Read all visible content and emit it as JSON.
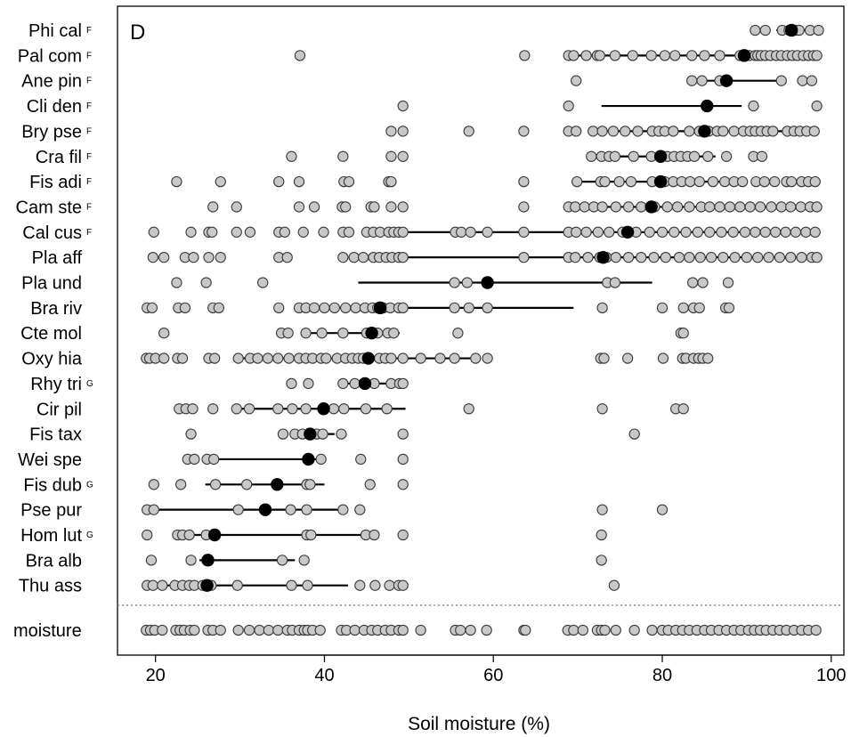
{
  "chart_data": {
    "type": "scatter",
    "panel_label": "D",
    "xlabel": "Soil moisture (%)",
    "xlim": [
      15.5,
      101.5
    ],
    "xticks": [
      20,
      40,
      60,
      80,
      100
    ],
    "series": [
      {
        "name": "Phi cal",
        "sup": "F",
        "optimum": 95.3,
        "range": [
          93.5,
          97.3
        ],
        "values": [
          91.0,
          92.2,
          94.2,
          95.0,
          95.8,
          96.2,
          97.5,
          98.5
        ]
      },
      {
        "name": "Pal com",
        "sup": "F",
        "optimum": 89.7,
        "range": [
          69.5,
          95.5
        ],
        "values": [
          37.1,
          63.7,
          68.9,
          69.5,
          71.0,
          72.3,
          72.6,
          74.4,
          76.5,
          78.7,
          80.3,
          81.5,
          83.5,
          85.0,
          86.8,
          89.2,
          89.8,
          90.3,
          91.0,
          91.3,
          91.7,
          92.2,
          92.8,
          93.5,
          94.1,
          94.8,
          95.4,
          96.0,
          96.7,
          97.3,
          97.9,
          98.3
        ]
      },
      {
        "name": "Ane pin",
        "sup": "F",
        "optimum": 87.6,
        "range": [
          84.5,
          94.2
        ],
        "values": [
          69.8,
          83.5,
          84.7,
          86.8,
          94.1,
          96.6,
          97.7
        ]
      },
      {
        "name": "Cli den",
        "sup": "F",
        "optimum": 85.3,
        "range": [
          72.8,
          89.4
        ],
        "values": [
          49.3,
          68.9,
          90.8,
          98.3
        ]
      },
      {
        "name": "Bry pse",
        "sup": "F",
        "optimum": 85.0,
        "range": [
          72.3,
          95.5
        ],
        "values": [
          47.9,
          49.3,
          57.1,
          63.6,
          68.9,
          69.8,
          71.8,
          72.9,
          74.2,
          75.6,
          77.1,
          78.8,
          79.6,
          80.3,
          81.3,
          83.2,
          84.4,
          85.5,
          86.5,
          87.2,
          88.5,
          89.6,
          90.4,
          91.0,
          91.7,
          92.4,
          93.1,
          94.8,
          95.6,
          96.3,
          97.1,
          98.0
        ]
      },
      {
        "name": "Cra fil",
        "sup": "F",
        "optimum": 79.8,
        "range": [
          75.0,
          86.3
        ],
        "values": [
          36.1,
          42.2,
          47.9,
          49.3,
          71.6,
          72.8,
          73.7,
          74.4,
          76.6,
          78.7,
          79.8,
          80.6,
          81.4,
          82.2,
          83.0,
          83.8,
          85.4,
          87.6,
          90.8,
          91.8
        ]
      },
      {
        "name": "Fis adi",
        "sup": "F",
        "optimum": 79.8,
        "range": [
          70.0,
          89.3
        ],
        "values": [
          22.5,
          27.7,
          34.6,
          37.0,
          42.3,
          42.9,
          47.6,
          47.9,
          63.6,
          69.9,
          72.7,
          73.2,
          74.9,
          76.3,
          78.8,
          80.3,
          81.3,
          82.3,
          83.3,
          84.4,
          86.0,
          87.4,
          88.5,
          89.5,
          91.1,
          92.1,
          93.3,
          94.7,
          95.3,
          96.5,
          97.3,
          98.1
        ]
      },
      {
        "name": "Cam ste",
        "sup": "F",
        "optimum": 78.7,
        "range": [
          69.5,
          98.0
        ],
        "values": [
          26.8,
          29.6,
          37.0,
          38.8,
          42.1,
          42.5,
          45.5,
          45.9,
          47.9,
          49.3,
          63.6,
          68.9,
          69.7,
          70.8,
          71.9,
          72.9,
          74.5,
          76.0,
          77.5,
          79.1,
          80.6,
          81.8,
          83.2,
          84.6,
          85.6,
          86.8,
          88.0,
          89.2,
          90.4,
          91.6,
          92.9,
          94.1,
          95.2,
          96.4,
          97.5,
          98.3
        ]
      },
      {
        "name": "Cal cus",
        "sup": "F",
        "optimum": 75.9,
        "range": [
          49.5,
          98.0
        ],
        "values": [
          19.8,
          24.2,
          26.3,
          26.7,
          29.6,
          31.2,
          34.6,
          35.3,
          37.5,
          39.9,
          42.2,
          42.9,
          45.0,
          45.8,
          46.6,
          47.6,
          48.2,
          48.8,
          49.3,
          55.5,
          56.2,
          57.3,
          59.3,
          63.6,
          68.9,
          69.8,
          71.0,
          72.4,
          73.7,
          75.3,
          76.9,
          78.5,
          80.0,
          81.4,
          82.8,
          84.2,
          85.6,
          87.0,
          88.4,
          89.8,
          91.0,
          92.2,
          93.4,
          94.6,
          95.8,
          97.0,
          98.1
        ]
      },
      {
        "name": "Pla aff",
        "sup": "",
        "optimum": 73.0,
        "range": [
          45.0,
          98.0
        ],
        "values": [
          19.7,
          21.0,
          23.5,
          24.5,
          26.3,
          27.7,
          34.6,
          35.6,
          42.2,
          43.5,
          44.6,
          45.8,
          46.5,
          47.3,
          48.0,
          48.8,
          49.3,
          63.6,
          68.9,
          69.7,
          71.2,
          72.6,
          73.4,
          74.5,
          76.0,
          77.5,
          79.0,
          80.4,
          82.0,
          83.2,
          84.5,
          85.8,
          87.2,
          88.6,
          90.0,
          91.3,
          92.6,
          93.9,
          95.2,
          96.5,
          97.7,
          98.3
        ]
      },
      {
        "name": "Pla und",
        "sup": "",
        "optimum": 59.3,
        "range": [
          44.0,
          78.8
        ],
        "values": [
          22.5,
          26.0,
          32.7,
          55.4,
          56.9,
          73.5,
          74.4,
          83.6,
          84.8,
          87.8
        ]
      },
      {
        "name": "Bra riv",
        "sup": "",
        "optimum": 46.6,
        "range": [
          37.8,
          69.5
        ],
        "values": [
          19.0,
          19.6,
          22.7,
          23.5,
          26.8,
          27.5,
          34.6,
          37.0,
          37.8,
          38.8,
          40.0,
          41.2,
          42.5,
          43.7,
          44.8,
          45.7,
          46.3,
          47.0,
          47.8,
          48.8,
          49.3,
          55.4,
          57.1,
          59.3,
          72.9,
          80.0,
          82.5,
          83.7,
          84.4,
          87.5,
          87.9
        ]
      },
      {
        "name": "Cte mol",
        "sup": "",
        "optimum": 45.6,
        "range": [
          38.2,
          48.9
        ],
        "values": [
          21.0,
          34.9,
          35.7,
          37.8,
          39.7,
          42.2,
          45.0,
          46.3,
          47.5,
          48.2,
          55.8,
          82.2,
          82.5
        ]
      },
      {
        "name": "Oxy hia",
        "sup": "",
        "optimum": 45.2,
        "range": [
          29.5,
          57.5
        ],
        "values": [
          18.9,
          19.3,
          20.0,
          21.0,
          22.6,
          23.2,
          26.3,
          27.0,
          29.8,
          31.2,
          32.1,
          33.3,
          34.5,
          35.8,
          37.0,
          37.8,
          38.6,
          39.6,
          40.2,
          41.5,
          42.5,
          43.3,
          44.0,
          44.6,
          45.2,
          46.5,
          47.2,
          47.9,
          49.3,
          51.4,
          53.7,
          55.4,
          57.9,
          59.3,
          72.7,
          73.1,
          75.9,
          80.1,
          82.4,
          82.8,
          83.7,
          84.3,
          84.8,
          85.4
        ]
      },
      {
        "name": "Rhy tri",
        "sup": "G",
        "optimum": 44.8,
        "range": [
          42.2,
          48.6
        ],
        "values": [
          36.1,
          38.1,
          42.2,
          43.6,
          44.8,
          45.9,
          47.9,
          48.9,
          49.3
        ]
      },
      {
        "name": "Cir pil",
        "sup": "",
        "optimum": 39.9,
        "range": [
          29.6,
          49.6
        ],
        "values": [
          22.8,
          23.6,
          24.4,
          26.8,
          29.6,
          31.1,
          34.5,
          36.2,
          37.8,
          39.9,
          41.1,
          42.3,
          44.9,
          47.4,
          57.1,
          72.9,
          81.6,
          82.5
        ]
      },
      {
        "name": "Fis tax",
        "sup": "",
        "optimum": 38.3,
        "range": [
          37.1,
          41.2
        ],
        "values": [
          24.2,
          35.1,
          36.5,
          37.4,
          38.3,
          39.1,
          39.8,
          42.0,
          49.3,
          76.7
        ]
      },
      {
        "name": "Wei spe",
        "sup": "",
        "optimum": 38.1,
        "range": [
          27.0,
          39.5
        ],
        "values": [
          23.8,
          24.6,
          26.1,
          26.9,
          38.1,
          39.6,
          44.3,
          49.3
        ]
      },
      {
        "name": "Fis dub",
        "sup": "G",
        "optimum": 34.4,
        "range": [
          25.9,
          40.0
        ],
        "values": [
          19.8,
          23.0,
          27.1,
          30.8,
          34.4,
          37.9,
          38.3,
          45.4,
          49.3
        ]
      },
      {
        "name": "Pse pur",
        "sup": "",
        "optimum": 33.0,
        "range": [
          19.4,
          42.2
        ],
        "values": [
          19.0,
          19.8,
          29.8,
          33.0,
          36.0,
          37.9,
          42.2,
          44.2,
          72.9,
          80.0
        ]
      },
      {
        "name": "Hom lut",
        "sup": "G",
        "optimum": 27.0,
        "range": [
          23.0,
          45.0
        ],
        "values": [
          19.0,
          22.6,
          23.2,
          24.0,
          26.0,
          27.0,
          37.9,
          38.4,
          44.9,
          45.9,
          49.3,
          72.8
        ]
      },
      {
        "name": "Bra alb",
        "sup": "",
        "optimum": 26.2,
        "range": [
          25.2,
          36.5
        ],
        "values": [
          19.5,
          24.2,
          26.2,
          35.0,
          37.6,
          72.8
        ]
      },
      {
        "name": "Thu ass",
        "sup": "",
        "optimum": 26.1,
        "range": [
          20.0,
          42.8
        ],
        "values": [
          19.0,
          19.7,
          20.8,
          22.3,
          23.2,
          24.0,
          24.6,
          25.6,
          26.1,
          26.6,
          29.7,
          36.1,
          38.0,
          44.2,
          46.0,
          47.7,
          48.8,
          49.3,
          74.3
        ]
      }
    ],
    "moisture": {
      "name": "moisture",
      "values": [
        18.9,
        19.4,
        19.9,
        20.8,
        22.4,
        22.9,
        23.4,
        24.1,
        24.6,
        26.2,
        26.8,
        27.7,
        29.8,
        31.1,
        32.3,
        33.4,
        34.5,
        35.6,
        36.2,
        37.0,
        37.6,
        38.0,
        38.6,
        39.5,
        42.0,
        42.6,
        43.6,
        44.7,
        45.6,
        46.3,
        47.2,
        47.9,
        48.8,
        49.3,
        51.4,
        55.5,
        56.1,
        57.3,
        59.2,
        63.6,
        63.8,
        68.8,
        69.5,
        70.6,
        72.3,
        72.8,
        73.2,
        74.5,
        76.7,
        78.8,
        80.0,
        80.7,
        81.6,
        82.4,
        83.2,
        84.1,
        85.0,
        85.8,
        86.7,
        87.6,
        88.5,
        89.3,
        90.2,
        90.9,
        91.6,
        92.3,
        93.1,
        93.9,
        94.7,
        95.6,
        96.5,
        97.3,
        98.2
      ]
    }
  }
}
